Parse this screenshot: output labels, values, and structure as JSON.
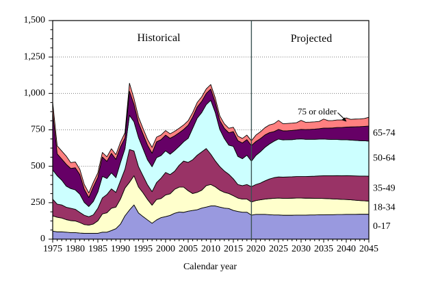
{
  "labels": {
    "historical": "Historical",
    "projected": "Projected",
    "xlabel": "Calendar year"
  },
  "annotation": {
    "text": "75 or older"
  },
  "chart_data": {
    "type": "area",
    "stacked": true,
    "title": "",
    "xlabel": "Calendar year",
    "ylabel": "",
    "ylim": [
      0,
      1500
    ],
    "y_major_step": 250,
    "y_minor_step": 62.5,
    "grid": "horizontal dotted at each 250",
    "legend_position": "band labels at right edge",
    "divider_x": 2019,
    "region_labels": [
      "Historical",
      "Projected"
    ],
    "y_tick_labels": [
      "0",
      "250",
      "500",
      "750",
      "1,000",
      "1,250",
      "1,500"
    ],
    "y_tick_values": [
      0,
      250,
      500,
      750,
      1000,
      1250,
      1500
    ],
    "x_tick_labels": [
      "1975",
      "1980",
      "1985",
      "1990",
      "1995",
      "2000",
      "2005",
      "2010",
      "2015",
      "2020",
      "2025",
      "2030",
      "2035",
      "2040",
      "2045"
    ],
    "x": [
      1975,
      1976,
      1977,
      1978,
      1979,
      1980,
      1981,
      1982,
      1983,
      1984,
      1985,
      1986,
      1987,
      1988,
      1989,
      1990,
      1991,
      1992,
      1993,
      1994,
      1995,
      1996,
      1997,
      1998,
      1999,
      2000,
      2001,
      2002,
      2003,
      2004,
      2005,
      2006,
      2007,
      2008,
      2009,
      2010,
      2011,
      2012,
      2013,
      2014,
      2015,
      2016,
      2017,
      2018,
      2019,
      2020,
      2021,
      2022,
      2023,
      2024,
      2025,
      2026,
      2027,
      2028,
      2029,
      2030,
      2031,
      2032,
      2033,
      2034,
      2035,
      2036,
      2037,
      2038,
      2039,
      2040,
      2041,
      2042,
      2043,
      2044,
      2045
    ],
    "series": [
      {
        "name": "0-17",
        "color": "#9999DF",
        "values": [
          55,
          50,
          50,
          48,
          45,
          45,
          42,
          40,
          40,
          40,
          40,
          48,
          48,
          59,
          72,
          103,
          160,
          200,
          235,
          180,
          155,
          132,
          109,
          132,
          148,
          155,
          163,
          178,
          186,
          184,
          192,
          197,
          202,
          213,
          220,
          228,
          228,
          220,
          213,
          210,
          197,
          190,
          185,
          185,
          165,
          170,
          170,
          170,
          168,
          166,
          166,
          164,
          164,
          164,
          165,
          165,
          165,
          166,
          166,
          167,
          167,
          168,
          168,
          169,
          169,
          170,
          170,
          170,
          171,
          171,
          171
        ]
      },
      {
        "name": "18-34",
        "color": "#FFFFCC",
        "values": [
          105,
          100,
          95,
          86,
          82,
          80,
          72,
          60,
          56,
          64,
          86,
          125,
          133,
          153,
          148,
          172,
          190,
          190,
          200,
          178,
          163,
          140,
          124,
          140,
          131,
          148,
          148,
          164,
          171,
          173,
          140,
          116,
          119,
          123,
          147,
          147,
          131,
          116,
          108,
          103,
          101,
          92,
          90,
          90,
          90,
          95,
          100,
          105,
          110,
          114,
          116,
          116,
          116,
          117,
          117,
          117,
          116,
          115,
          114,
          113,
          112,
          110,
          108,
          106,
          104,
          102,
          100,
          97,
          94,
          92,
          90
        ]
      },
      {
        "name": "35-49",
        "color": "#993366",
        "values": [
          115,
          90,
          90,
          85,
          85,
          80,
          70,
          64,
          58,
          63,
          86,
          110,
          125,
          133,
          101,
          125,
          130,
          225,
          170,
          140,
          117,
          101,
          93,
          116,
          140,
          155,
          132,
          124,
          150,
          179,
          195,
          232,
          255,
          263,
          255,
          208,
          178,
          162,
          147,
          132,
          116,
          93,
          92,
          100,
          105,
          110,
          115,
          125,
          135,
          142,
          145,
          146,
          147,
          147,
          148,
          148,
          149,
          150,
          152,
          154,
          156,
          157,
          159,
          161,
          162,
          164,
          165,
          167,
          168,
          170,
          171
        ]
      },
      {
        "name": "50-64",
        "color": "#CCFFFF",
        "values": [
          200,
          195,
          170,
          145,
          135,
          133,
          125,
          88,
          70,
          92,
          112,
          148,
          110,
          110,
          101,
          125,
          140,
          235,
          200,
          200,
          186,
          171,
          171,
          171,
          155,
          148,
          140,
          142,
          130,
          132,
          165,
          216,
          254,
          270,
          301,
          370,
          332,
          255,
          223,
          200,
          223,
          193,
          185,
          201,
          175,
          200,
          215,
          230,
          240,
          250,
          260,
          255,
          255,
          255,
          256,
          258,
          255,
          254,
          253,
          252,
          252,
          250,
          249,
          248,
          247,
          246,
          245,
          244,
          243,
          242,
          241
        ]
      },
      {
        "name": "65-74",
        "color": "#660066",
        "values": [
          400,
          150,
          145,
          150,
          138,
          152,
          135,
          90,
          62,
          100,
          100,
          133,
          118,
          134,
          126,
          108,
          75,
          165,
          120,
          100,
          100,
          101,
          93,
          109,
          109,
          108,
          109,
          101,
          93,
          85,
          90,
          77,
          77,
          77,
          77,
          77,
          69,
          62,
          70,
          85,
          101,
          108,
          108,
          107,
          107,
          95,
          90,
          85,
          78,
          66,
          66,
          62,
          62,
          63,
          63,
          65,
          67,
          68,
          70,
          72,
          75,
          77,
          79,
          82,
          84,
          87,
          90,
          93,
          96,
          99,
          103
        ]
      },
      {
        "name": "75 or older",
        "color": "#FF8080",
        "values": [
          65,
          55,
          55,
          56,
          40,
          40,
          36,
          33,
          31,
          31,
          31,
          31,
          31,
          31,
          32,
          32,
          35,
          55,
          40,
          40,
          39,
          40,
          40,
          32,
          32,
          31,
          31,
          31,
          31,
          31,
          31,
          31,
          31,
          31,
          31,
          31,
          31,
          31,
          31,
          31,
          30,
          31,
          31,
          31,
          33,
          44,
          47,
          50,
          53,
          54,
          62,
          49,
          50,
          50,
          50,
          62,
          50,
          50,
          50,
          50,
          62,
          51,
          51,
          52,
          52,
          63,
          52,
          53,
          53,
          54,
          60
        ]
      }
    ],
    "annotation": {
      "text": "75 or older",
      "points_to_series": "75 or older"
    }
  }
}
